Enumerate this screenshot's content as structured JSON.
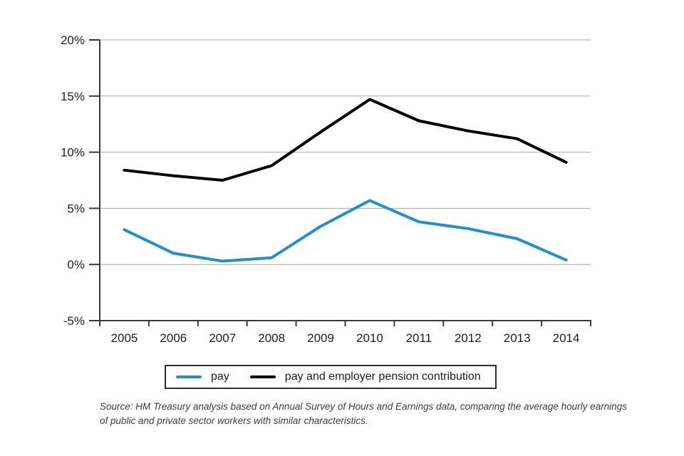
{
  "chart_data": {
    "type": "line",
    "title": "",
    "xlabel": "",
    "ylabel": "",
    "categories": [
      "2005",
      "2006",
      "2007",
      "2008",
      "2009",
      "2010",
      "2011",
      "2012",
      "2013",
      "2014"
    ],
    "series": [
      {
        "name": "pay",
        "color": "#1e90d2",
        "values": [
          3.1,
          1.0,
          0.3,
          0.6,
          3.4,
          5.7,
          3.8,
          3.2,
          2.3,
          0.4
        ]
      },
      {
        "name": "pay and employer pension contribution",
        "color": "#000000",
        "values": [
          8.4,
          7.9,
          7.5,
          8.8,
          11.8,
          14.7,
          12.8,
          11.9,
          11.2,
          9.1
        ]
      }
    ],
    "ylim": [
      -5,
      20
    ],
    "yticks": [
      {
        "value": 20,
        "label": "20%"
      },
      {
        "value": 15,
        "label": "15%"
      },
      {
        "value": 10,
        "label": "10%"
      },
      {
        "value": 5,
        "label": "5%"
      },
      {
        "value": 0,
        "label": "0%"
      },
      {
        "value": -5,
        "label": "-5%"
      }
    ],
    "grid": true,
    "legend_position": "bottom",
    "colors": {
      "grid": "#a8a8a8",
      "axis": "#3a3a3a",
      "text": "#1d1d1b"
    }
  },
  "source": {
    "lines": [
      "Source: HM Treasury analysis based on Annual Survey of Hours and Earnings data, comparing the average hourly earnings",
      "of public and private sector workers with similar characteristics."
    ]
  }
}
